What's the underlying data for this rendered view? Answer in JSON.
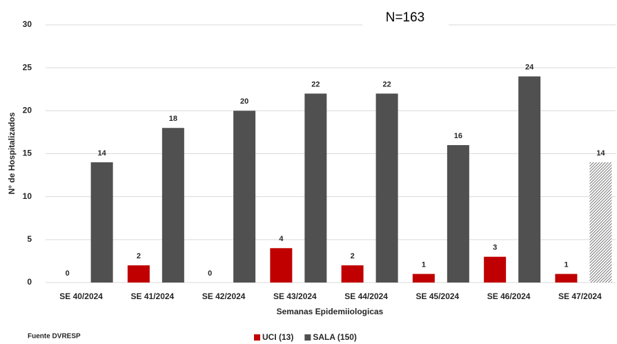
{
  "chart_data": {
    "type": "bar",
    "title": "N=163",
    "x_label": "Semanas Epidemiiologicas",
    "y_label": "N° de Hospitalizados",
    "source": "Fuente DVRESP",
    "categories": [
      "SE 40/2024",
      "SE 41/2024",
      "SE 42/2024",
      "SE 43/2024",
      "SE 44/2024",
      "SE 45/2024",
      "SE 46/2024",
      "SE 47/2024"
    ],
    "series": [
      {
        "name": "UCI (13)",
        "color": "#c00000",
        "values": [
          0,
          2,
          0,
          4,
          2,
          1,
          3,
          1
        ]
      },
      {
        "name": "SALA (150)",
        "color": "#505050",
        "values": [
          14,
          18,
          20,
          22,
          22,
          16,
          24,
          14
        ],
        "hatched_indices": [
          7
        ]
      }
    ],
    "ylim": [
      0,
      30
    ],
    "yticks": [
      0,
      5,
      10,
      15,
      20,
      25,
      30
    ],
    "grid": true,
    "legend": "bottom"
  }
}
